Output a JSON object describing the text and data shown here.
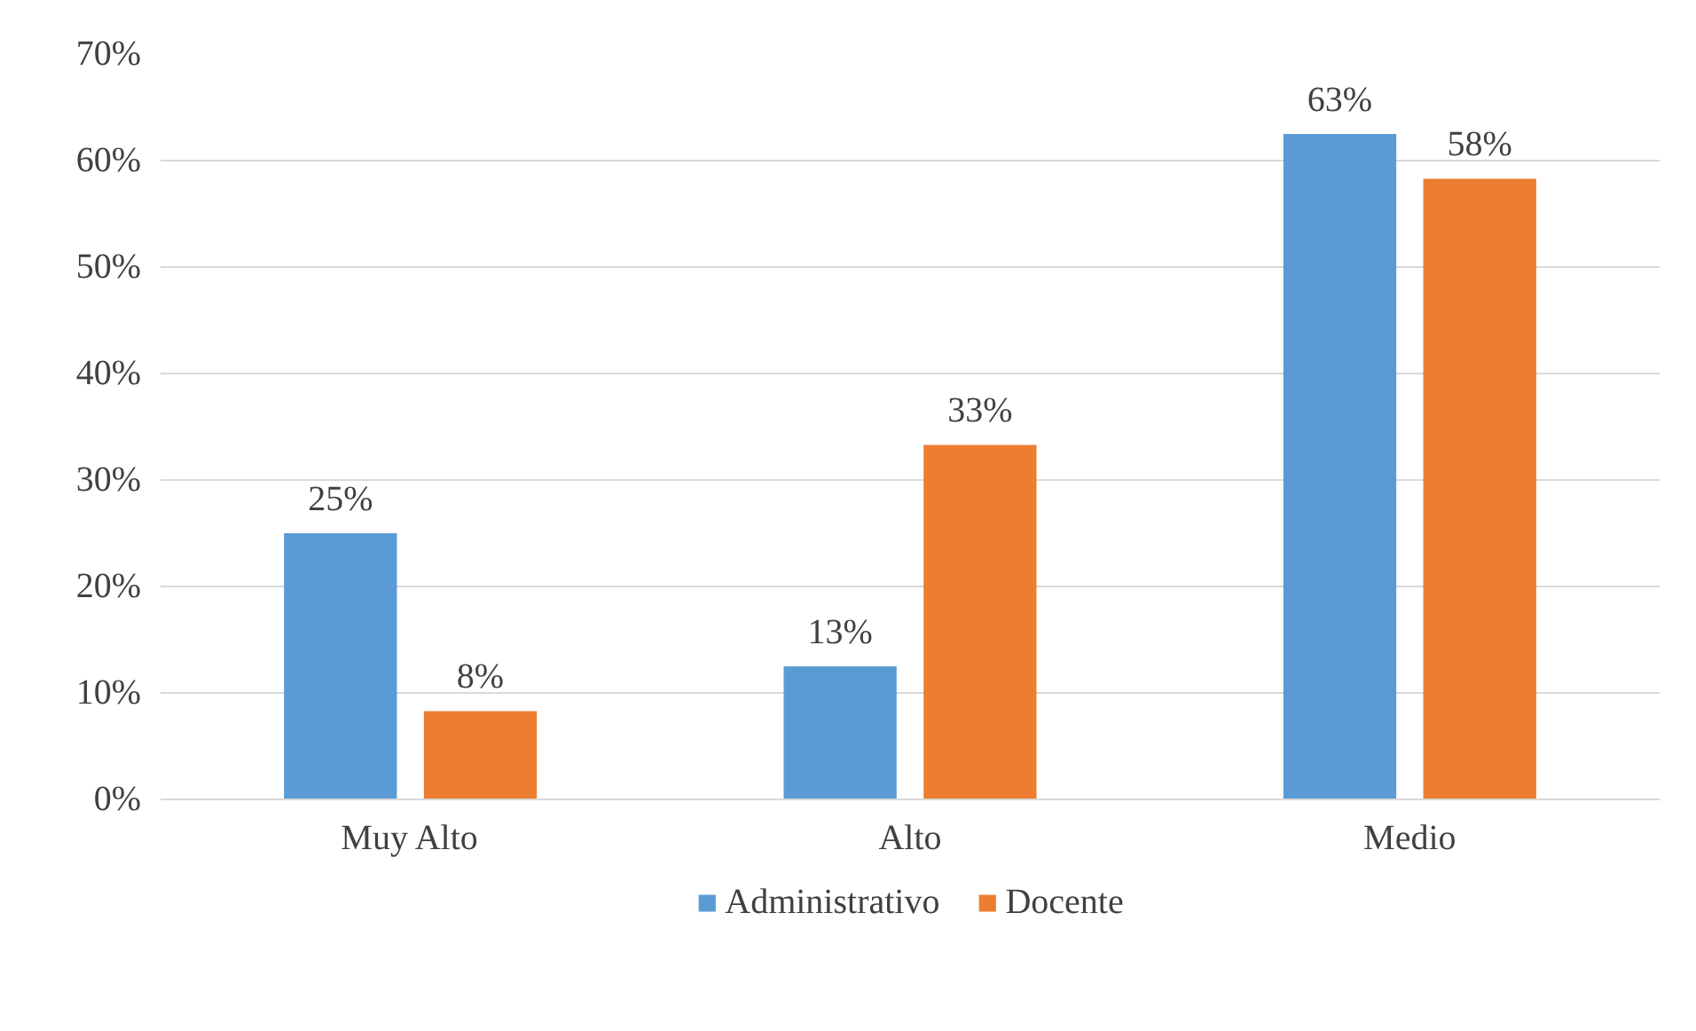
{
  "chart_data": {
    "type": "bar",
    "categories": [
      "Muy Alto",
      "Alto",
      "Medio"
    ],
    "series": [
      {
        "name": "Administrativo",
        "color": "#5b9bd5",
        "values": [
          25,
          12.5,
          62.5
        ],
        "value_labels": [
          "25%",
          "13%",
          "63%"
        ]
      },
      {
        "name": "Docente",
        "color": "#ed7d31",
        "values": [
          8.3,
          33.3,
          58.3
        ],
        "value_labels": [
          "8%",
          "33%",
          "58%"
        ]
      }
    ],
    "ylim": [
      0,
      70
    ],
    "yticks": [
      {
        "value": 0,
        "label": "0%"
      },
      {
        "value": 10,
        "label": "10%"
      },
      {
        "value": 20,
        "label": "20%"
      },
      {
        "value": 30,
        "label": "30%"
      },
      {
        "value": 40,
        "label": "40%"
      },
      {
        "value": 50,
        "label": "50%"
      },
      {
        "value": 60,
        "label": "60%"
      },
      {
        "value": 70,
        "label": "70%"
      }
    ],
    "grid": "y",
    "legend": "bottom"
  }
}
